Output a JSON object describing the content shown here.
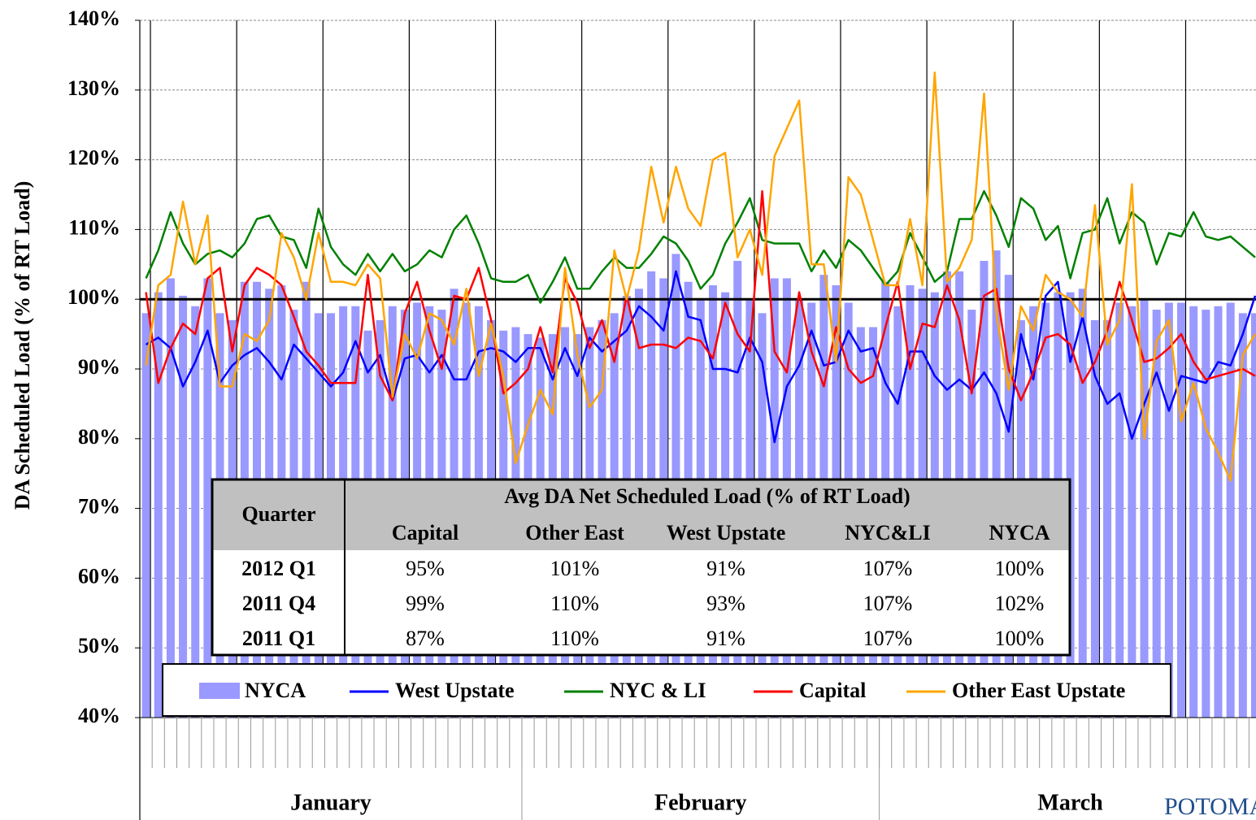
{
  "chart_data": {
    "type": "combo",
    "y_label": "DA Scheduled Load (% of RT Load)",
    "ylim": [
      40,
      140
    ],
    "yticks": [
      {
        "value": 40,
        "label": "40%"
      },
      {
        "value": 50,
        "label": "50%"
      },
      {
        "value": 60,
        "label": "60%"
      },
      {
        "value": 70,
        "label": "70%"
      },
      {
        "value": 80,
        "label": "80%"
      },
      {
        "value": 90,
        "label": "90%"
      },
      {
        "value": 100,
        "label": "100%"
      },
      {
        "value": 110,
        "label": "110%"
      },
      {
        "value": 120,
        "label": "120%"
      },
      {
        "value": 130,
        "label": "130%"
      },
      {
        "value": 140,
        "label": "140%"
      }
    ],
    "grid": true,
    "reference_line": 100,
    "categories": [
      "January",
      "January",
      "January",
      "January",
      "January",
      "January",
      "January",
      "January",
      "January",
      "January",
      "January",
      "January",
      "January",
      "January",
      "January",
      "January",
      "January",
      "January",
      "January",
      "January",
      "January",
      "January",
      "January",
      "January",
      "January",
      "January",
      "January",
      "January",
      "January",
      "January",
      "January",
      "February",
      "February",
      "February",
      "February",
      "February",
      "February",
      "February",
      "February",
      "February",
      "February",
      "February",
      "February",
      "February",
      "February",
      "February",
      "February",
      "February",
      "February",
      "February",
      "February",
      "February",
      "February",
      "February",
      "February",
      "February",
      "February",
      "February",
      "February",
      "February",
      "March",
      "March",
      "March",
      "March",
      "March",
      "March",
      "March",
      "March",
      "March",
      "March",
      "March",
      "March",
      "March",
      "March",
      "March",
      "March",
      "March",
      "March",
      "March",
      "March",
      "March",
      "March",
      "March",
      "March",
      "March",
      "March",
      "March",
      "March",
      "March",
      "March",
      "March"
    ],
    "series": [
      {
        "name": "NYCA",
        "type": "bar",
        "color": "#9999ff",
        "values": [
          98,
          101,
          103,
          100.5,
          99,
          103,
          98,
          97,
          102.5,
          102.5,
          101.5,
          102,
          98.5,
          102.5,
          98,
          98,
          99,
          99,
          95.5,
          97,
          99,
          98.5,
          99.5,
          99,
          98.5,
          101.5,
          99.5,
          99,
          97,
          95.5,
          96,
          95,
          94.5,
          95,
          96,
          95,
          96,
          97,
          98,
          100.5,
          101.5,
          104,
          103,
          106.5,
          102.5,
          100,
          102,
          101,
          105.5,
          100,
          98,
          103,
          103,
          100,
          99.5,
          103.5,
          102,
          99.5,
          96,
          96,
          102.5,
          99,
          102,
          101.5,
          101,
          104,
          104,
          98.5,
          105.5,
          107,
          103.5,
          97,
          99,
          99.5,
          101,
          101,
          101.5,
          97,
          97,
          99.5,
          99,
          100,
          98.5,
          99.5,
          99.5,
          99,
          98.5,
          99,
          99.5,
          98,
          98
        ]
      },
      {
        "name": "West Upstate",
        "type": "line",
        "color": "#0000ff",
        "values": [
          93.5,
          94.5,
          93,
          87.5,
          91,
          95.5,
          88,
          90.5,
          92,
          93,
          91,
          88.5,
          93.5,
          91.5,
          89.5,
          87.5,
          89.5,
          94,
          89.5,
          92,
          85.5,
          91.5,
          92,
          89.5,
          92,
          88.5,
          88.5,
          92.5,
          93,
          92.5,
          91,
          93,
          93,
          88.5,
          93,
          89,
          94.5,
          92.5,
          94,
          95.5,
          99,
          97.5,
          95.5,
          104,
          97.5,
          97,
          90,
          90,
          89.5,
          94.5,
          91,
          79.5,
          87.5,
          90.5,
          95.5,
          90.5,
          91,
          95.5,
          92.5,
          93,
          88,
          85,
          92.5,
          92.5,
          89,
          87,
          88.5,
          87,
          89.5,
          86.5,
          81,
          95,
          88.5,
          100.5,
          102.5,
          91,
          97.5,
          89,
          85,
          86.5,
          80,
          85,
          89.5,
          84,
          89,
          88.5,
          88,
          91,
          90.5,
          95,
          100.5
        ]
      },
      {
        "name": "NYC & LI",
        "type": "line",
        "color": "#008000",
        "values": [
          103,
          107,
          112.5,
          108,
          105,
          106.5,
          107,
          106,
          108,
          111.5,
          112,
          109,
          108.5,
          104.5,
          113,
          107.5,
          105,
          103.5,
          106.5,
          104,
          106.5,
          104,
          105,
          107,
          106,
          110,
          112,
          108,
          103,
          102.5,
          102.5,
          103.5,
          99.5,
          102.5,
          106,
          101.5,
          101.5,
          104,
          106,
          104.5,
          104.5,
          106.5,
          109,
          108,
          105.5,
          101.5,
          103.5,
          108,
          111,
          114.5,
          108.5,
          108,
          108,
          108,
          104,
          107,
          104.5,
          108.5,
          107,
          104.5,
          102,
          104,
          109.5,
          106,
          102.5,
          104,
          111.5,
          111.5,
          115.5,
          112,
          107.5,
          114.5,
          113,
          108.5,
          110.5,
          103,
          109.5,
          110,
          114.5,
          108,
          112.5,
          111,
          105,
          109.5,
          109,
          112.5,
          109,
          108.5,
          109,
          107.5,
          106
        ]
      },
      {
        "name": "Capital",
        "type": "line",
        "color": "#ff0000",
        "values": [
          101,
          88,
          93,
          96.5,
          95,
          103,
          104.5,
          92.5,
          102,
          104.5,
          103.5,
          102,
          97.5,
          92.5,
          90.5,
          88,
          88,
          88,
          103.5,
          89,
          85.5,
          98,
          102.5,
          95.5,
          90,
          100.5,
          100,
          104.5,
          97,
          86.5,
          88,
          90,
          96,
          89.5,
          103,
          99.5,
          93,
          97,
          91,
          100.5,
          93,
          93.5,
          93.5,
          93,
          94.5,
          94,
          91.5,
          99.5,
          95,
          92.5,
          115.5,
          92.5,
          89.5,
          101,
          92.5,
          87.5,
          96,
          90,
          88,
          89,
          96,
          102.5,
          90,
          96.5,
          96,
          102,
          97,
          86.5,
          100.5,
          101.5,
          90,
          85.5,
          89.5,
          94.5,
          95,
          93.5,
          88,
          91,
          95.5,
          102.5,
          97,
          91,
          91.5,
          93,
          95,
          91,
          88.5,
          89,
          89.5,
          90,
          89
        ]
      },
      {
        "name": "Other East Upstate",
        "type": "line",
        "color": "#ffa500",
        "values": [
          90.5,
          102,
          103.5,
          114,
          105,
          112,
          87.5,
          87.5,
          95,
          94,
          97,
          109.5,
          106,
          100,
          109.5,
          102.5,
          102.5,
          102,
          105,
          103,
          86,
          95,
          91.5,
          98,
          97,
          93.5,
          101.5,
          89,
          96.5,
          89,
          76.5,
          82,
          87,
          83.5,
          104.5,
          92,
          84.5,
          87,
          107,
          100,
          107,
          119,
          111,
          119,
          113,
          110.5,
          120,
          121,
          106,
          110,
          103.5,
          120.5,
          124.5,
          128.5,
          105,
          105,
          91,
          117.5,
          115,
          108.5,
          102,
          102,
          111.5,
          102,
          132.5,
          102.5,
          104.5,
          108.5,
          129.5,
          98,
          87,
          99,
          95.5,
          103.5,
          101,
          100,
          97.5,
          113.5,
          93.5,
          97,
          116.5,
          80,
          94,
          97,
          82.5,
          88,
          81.5,
          78,
          74,
          92,
          95
        ]
      }
    ],
    "table": {
      "title": "Avg DA Net Scheduled Load (% of RT Load)",
      "header": [
        "Quarter",
        "Capital",
        "Other East",
        "West Upstate",
        "NYC&LI",
        "NYCA"
      ],
      "rows": [
        [
          "2012 Q1",
          "95%",
          "101%",
          "91%",
          "107%",
          "100%"
        ],
        [
          "2011 Q4",
          "99%",
          "110%",
          "93%",
          "107%",
          "102%"
        ],
        [
          "2011 Q1",
          "87%",
          "110%",
          "91%",
          "107%",
          "100%"
        ]
      ]
    },
    "watermark": "POTOMA"
  }
}
